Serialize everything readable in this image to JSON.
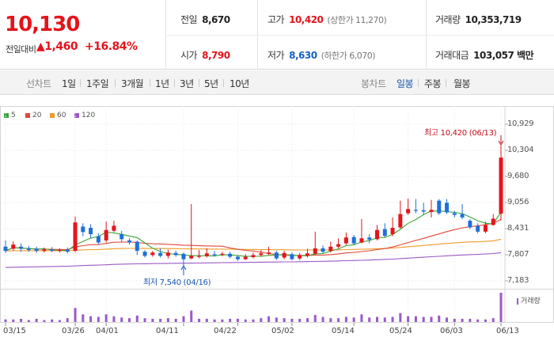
{
  "quote": {
    "price": "10,130",
    "change_label": "전일대비",
    "change_arrow": "▲",
    "change_value": "1,460",
    "change_pct": "+16.84%"
  },
  "stats": {
    "prev_label": "전일",
    "prev_value": "8,670",
    "high_label": "고가",
    "high_value": "10,420",
    "high_sub": "(상한가 11,270)",
    "volume_label": "거래량",
    "volume_value": "10,353,719",
    "open_label": "시가",
    "open_value": "8,790",
    "low_label": "저가",
    "low_value": "8,630",
    "low_sub": "(하한가 6,070)",
    "amount_label": "거래대금",
    "amount_value": "103,057 백만"
  },
  "tabs": {
    "line_label": "선차트",
    "line_items": [
      "1일",
      "1주일",
      "3개월",
      "1년",
      "3년",
      "5년",
      "10년"
    ],
    "candle_label": "봉차트",
    "candle_items": [
      "일봉",
      "주봉",
      "월봉"
    ],
    "candle_selected": "일봉"
  },
  "legend": [
    {
      "label": "5",
      "color": "#3aa535"
    },
    {
      "label": "20",
      "color": "#e0473a"
    },
    {
      "label": "60",
      "color": "#ef9a28"
    },
    {
      "label": "120",
      "color": "#9b59c6"
    }
  ],
  "annotations": {
    "high_text": "최고 10,420 (06/13)",
    "low_text": "최저 7,540 (04/16)",
    "volume_label": "거래량"
  },
  "colors": {
    "up": "#e4141b",
    "down": "#1e6fd9",
    "ma5": "#3aa535",
    "ma20": "#e0473a",
    "ma60": "#ef9a28",
    "ma120": "#9b59c6"
  },
  "chart_data": {
    "type": "candlestick",
    "ylim": [
      7183,
      10929
    ],
    "y_ticks": [
      "10,929",
      "10,304",
      "9,680",
      "9,056",
      "8,431",
      "7,807",
      "7,183"
    ],
    "x_ticks": [
      "03/15",
      "03/26",
      "04/01",
      "04/11",
      "04/22",
      "05/02",
      "05/14",
      "05/24",
      "06/03",
      "06/13"
    ],
    "candles": [
      {
        "o": 8000,
        "c": 7900,
        "h": 8150,
        "l": 7850,
        "v": 20
      },
      {
        "o": 7950,
        "c": 8050,
        "h": 8130,
        "l": 7900,
        "v": 20
      },
      {
        "o": 8000,
        "c": 7950,
        "h": 8080,
        "l": 7880,
        "v": 25
      },
      {
        "o": 7950,
        "c": 7920,
        "h": 8020,
        "l": 7880,
        "v": 15
      },
      {
        "o": 7950,
        "c": 7900,
        "h": 8000,
        "l": 7850,
        "v": 25
      },
      {
        "o": 7900,
        "c": 7930,
        "h": 7980,
        "l": 7860,
        "v": 15
      },
      {
        "o": 7930,
        "c": 7900,
        "h": 7990,
        "l": 7870,
        "v": 20
      },
      {
        "o": 7900,
        "c": 7920,
        "h": 7960,
        "l": 7860,
        "v": 15
      },
      {
        "o": 7930,
        "c": 7880,
        "h": 7980,
        "l": 7840,
        "v": 30
      },
      {
        "o": 7900,
        "c": 8580,
        "h": 8720,
        "l": 7870,
        "v": 110
      },
      {
        "o": 8480,
        "c": 8350,
        "h": 8560,
        "l": 8250,
        "v": 60
      },
      {
        "o": 8450,
        "c": 8300,
        "h": 8540,
        "l": 8200,
        "v": 45
      },
      {
        "o": 8250,
        "c": 8100,
        "h": 8320,
        "l": 8060,
        "v": 40
      },
      {
        "o": 8150,
        "c": 8400,
        "h": 8600,
        "l": 8100,
        "v": 60
      },
      {
        "o": 8380,
        "c": 8500,
        "h": 8620,
        "l": 8350,
        "v": 45
      },
      {
        "o": 8300,
        "c": 8180,
        "h": 8380,
        "l": 8120,
        "v": 35
      },
      {
        "o": 8150,
        "c": 8100,
        "h": 8200,
        "l": 8050,
        "v": 30
      },
      {
        "o": 8120,
        "c": 7900,
        "h": 8150,
        "l": 7800,
        "v": 50
      },
      {
        "o": 7880,
        "c": 7780,
        "h": 7920,
        "l": 7740,
        "v": 30
      },
      {
        "o": 7800,
        "c": 7860,
        "h": 7900,
        "l": 7760,
        "v": 25
      },
      {
        "o": 7850,
        "c": 7780,
        "h": 7960,
        "l": 7740,
        "v": 25
      },
      {
        "o": 7780,
        "c": 7860,
        "h": 7930,
        "l": 7720,
        "v": 30
      },
      {
        "o": 7850,
        "c": 7800,
        "h": 7900,
        "l": 7760,
        "v": 25
      },
      {
        "o": 7830,
        "c": 7700,
        "h": 7860,
        "l": 7540,
        "v": 45
      },
      {
        "o": 7720,
        "c": 7780,
        "h": 9020,
        "l": 7700,
        "v": 90
      },
      {
        "o": 7760,
        "c": 7780,
        "h": 7920,
        "l": 7720,
        "v": 25
      },
      {
        "o": 7780,
        "c": 7840,
        "h": 7960,
        "l": 7740,
        "v": 25
      },
      {
        "o": 7820,
        "c": 7800,
        "h": 7900,
        "l": 7760,
        "v": 20
      },
      {
        "o": 7810,
        "c": 7830,
        "h": 7880,
        "l": 7770,
        "v": 20
      },
      {
        "o": 7830,
        "c": 7760,
        "h": 7880,
        "l": 7720,
        "v": 25
      },
      {
        "o": 7760,
        "c": 7700,
        "h": 7800,
        "l": 7660,
        "v": 25
      },
      {
        "o": 7700,
        "c": 7760,
        "h": 7820,
        "l": 7680,
        "v": 20
      },
      {
        "o": 7750,
        "c": 7800,
        "h": 7860,
        "l": 7720,
        "v": 20
      },
      {
        "o": 7800,
        "c": 7840,
        "h": 7920,
        "l": 7760,
        "v": 30
      },
      {
        "o": 7830,
        "c": 7860,
        "h": 8000,
        "l": 7800,
        "v": 45
      },
      {
        "o": 7860,
        "c": 7720,
        "h": 7900,
        "l": 7680,
        "v": 35
      },
      {
        "o": 7740,
        "c": 7850,
        "h": 7900,
        "l": 7700,
        "v": 30
      },
      {
        "o": 7820,
        "c": 7700,
        "h": 7860,
        "l": 7680,
        "v": 25
      },
      {
        "o": 7720,
        "c": 7800,
        "h": 7850,
        "l": 7680,
        "v": 25
      },
      {
        "o": 7780,
        "c": 7840,
        "h": 7950,
        "l": 7740,
        "v": 30
      },
      {
        "o": 7830,
        "c": 7960,
        "h": 8360,
        "l": 7800,
        "v": 55
      },
      {
        "o": 7960,
        "c": 7880,
        "h": 8030,
        "l": 7840,
        "v": 40
      },
      {
        "o": 7900,
        "c": 8000,
        "h": 8120,
        "l": 7860,
        "v": 30
      },
      {
        "o": 8000,
        "c": 8060,
        "h": 8200,
        "l": 7960,
        "v": 30
      },
      {
        "o": 8080,
        "c": 8220,
        "h": 8340,
        "l": 8040,
        "v": 40
      },
      {
        "o": 8230,
        "c": 8080,
        "h": 8280,
        "l": 8040,
        "v": 35
      },
      {
        "o": 8100,
        "c": 8200,
        "h": 8660,
        "l": 8080,
        "v": 60
      },
      {
        "o": 8220,
        "c": 8170,
        "h": 8300,
        "l": 8080,
        "v": 35
      },
      {
        "o": 8180,
        "c": 8400,
        "h": 8520,
        "l": 8150,
        "v": 40
      },
      {
        "o": 8420,
        "c": 8260,
        "h": 8560,
        "l": 8220,
        "v": 35
      },
      {
        "o": 8300,
        "c": 8450,
        "h": 8700,
        "l": 8250,
        "v": 40
      },
      {
        "o": 8460,
        "c": 8780,
        "h": 9100,
        "l": 8430,
        "v": 70
      },
      {
        "o": 8800,
        "c": 8900,
        "h": 9150,
        "l": 8760,
        "v": 45
      },
      {
        "o": 8880,
        "c": 8860,
        "h": 9140,
        "l": 8800,
        "v": 45
      },
      {
        "o": 8870,
        "c": 8840,
        "h": 9050,
        "l": 8750,
        "v": 40
      },
      {
        "o": 8830,
        "c": 8880,
        "h": 9120,
        "l": 8700,
        "v": 40
      },
      {
        "o": 9100,
        "c": 8800,
        "h": 9140,
        "l": 8760,
        "v": 50
      },
      {
        "o": 9050,
        "c": 8820,
        "h": 9140,
        "l": 8780,
        "v": 35
      },
      {
        "o": 8800,
        "c": 8760,
        "h": 8860,
        "l": 8700,
        "v": 25
      },
      {
        "o": 8780,
        "c": 8700,
        "h": 9020,
        "l": 8660,
        "v": 25
      },
      {
        "o": 8620,
        "c": 8460,
        "h": 8660,
        "l": 8420,
        "v": 25
      },
      {
        "o": 8500,
        "c": 8360,
        "h": 8560,
        "l": 8320,
        "v": 20
      },
      {
        "o": 8360,
        "c": 8520,
        "h": 8600,
        "l": 8320,
        "v": 20
      },
      {
        "o": 8520,
        "c": 8670,
        "h": 8780,
        "l": 8500,
        "v": 30
      },
      {
        "o": 8790,
        "c": 10130,
        "h": 10420,
        "l": 8630,
        "v": 230
      }
    ]
  }
}
